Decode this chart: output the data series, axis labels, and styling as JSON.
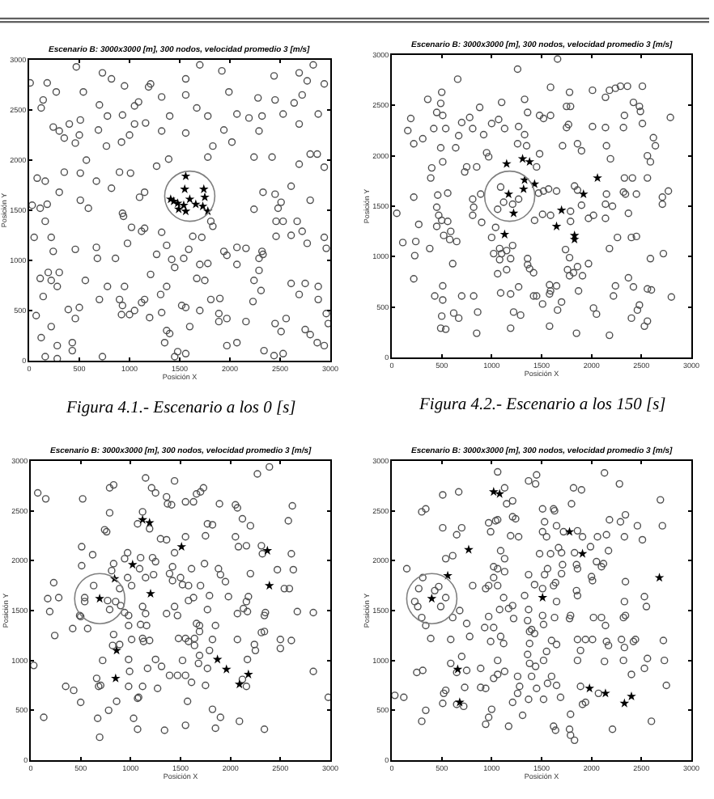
{
  "chart_data": [
    {
      "type": "scatter",
      "title": "Escenario B: 3000x3000 [m], 300 nodos, velocidad promedio 3 [m/s]",
      "xlabel": "Posición X",
      "ylabel": "Posición Y",
      "annotations": [
        "Figura 4.1.- Escenario a los 0 [s]"
      ],
      "xlim": [
        0,
        3000
      ],
      "ylim": [
        0,
        3000
      ],
      "xticks": [
        0,
        500,
        1000,
        1500,
        2000,
        2500,
        3000
      ],
      "yticks": [
        0,
        500,
        1000,
        1500,
        2000,
        2500,
        3000
      ],
      "series": [
        {
          "color": "#505050",
          "marker": "circle",
          "x": [
            10,
            180,
            470,
            730,
            820,
            950,
            540,
            700,
            270,
            140,
            120,
            240,
            300,
            350,
            460,
            500,
            400,
            510,
            690,
            780,
            930,
            1050,
            1090,
            1190,
            1210,
            1320,
            1400,
            1320,
            1160,
            1050,
            1000,
            920,
            770,
            570,
            350,
            80,
            160,
            300,
            510,
            670,
            820,
            900,
            1010,
            1150,
            1270,
            1390,
            1560,
            1560,
            1700,
            1670,
            1780,
            1830,
            1780,
            1560,
            1920,
            1990,
            2070,
            1940,
            2020,
            2190,
            2280,
            2290,
            2240,
            2420,
            2320,
            2440,
            2450,
            2530,
            2640,
            2690,
            2770,
            2830,
            2940,
            2720,
            2880,
            2690,
            2800,
            2870,
            2940,
            2690,
            30,
            110,
            180,
            160,
            220,
            50,
            240,
            460,
            510,
            590,
            940,
            930,
            1100,
            1020,
            1120,
            1150,
            980,
            860,
            670,
            680,
            1320,
            1370,
            1270,
            1420,
            1450,
            1540,
            1590,
            1630,
            1720,
            1810,
            1830,
            1700,
            1780,
            1940,
            2070,
            2160,
            1970,
            2070,
            2290,
            2320,
            2330,
            2290,
            2240,
            2310,
            2240,
            2330,
            2450,
            2480,
            2510,
            2460,
            2530,
            2460,
            2610,
            2670,
            2720,
            2610,
            2800,
            2940,
            2960,
            2770,
            110,
            190,
            220,
            300,
            280,
            140,
            70,
            220,
            120,
            160,
            280,
            280,
            430,
            430,
            390,
            460,
            500,
            560,
            700,
            730,
            780,
            900,
            930,
            920,
            1000,
            950,
            1050,
            1120,
            1150,
            1210,
            1310,
            1370,
            1320,
            1200,
            1370,
            1400,
            1350,
            1450,
            1480,
            1560,
            1600,
            1520,
            1560,
            1700,
            1670,
            1750,
            1810,
            1900,
            1890,
            1890,
            1970,
            1970,
            2070,
            2160,
            2230,
            2340,
            2440,
            2530,
            2450,
            2510,
            2560,
            2690,
            2750,
            2610,
            2750,
            2800,
            2870,
            2880,
            2960,
            2980,
            2940,
            2880
          ],
          "values": [
            2770,
            2770,
            2930,
            2870,
            2810,
            2740,
            2680,
            2550,
            2680,
            2600,
            2520,
            2330,
            2290,
            2220,
            2170,
            2250,
            2360,
            2400,
            2300,
            2440,
            2450,
            2540,
            2580,
            2730,
            2760,
            2630,
            2440,
            2290,
            2370,
            2360,
            2250,
            2180,
            2140,
            2000,
            1880,
            1820,
            1790,
            1680,
            1870,
            1790,
            1720,
            1880,
            1870,
            1680,
            1940,
            2010,
            2810,
            2650,
            2950,
            2520,
            2440,
            2140,
            2030,
            2270,
            2890,
            2680,
            2460,
            2300,
            2180,
            2420,
            2620,
            2290,
            2030,
            2030,
            2440,
            2840,
            2600,
            2460,
            2570,
            2870,
            2790,
            2950,
            2760,
            2650,
            2460,
            2360,
            2060,
            2060,
            1930,
            1960,
            1550,
            1520,
            1560,
            1390,
            1230,
            1230,
            1090,
            1110,
            1600,
            1520,
            1440,
            1470,
            1630,
            1330,
            1290,
            1320,
            1170,
            1020,
            1130,
            1020,
            1280,
            1150,
            1060,
            1010,
            930,
            1020,
            1110,
            1240,
            1230,
            1390,
            1340,
            960,
            970,
            1090,
            1130,
            1120,
            1050,
            960,
            1020,
            1090,
            1060,
            900,
            800,
            700,
            1510,
            1680,
            1660,
            1520,
            1580,
            1390,
            1390,
            1240,
            1250,
            1390,
            1290,
            1740,
            1600,
            1230,
            1120,
            1170,
            820,
            880,
            800,
            880,
            740,
            640,
            450,
            340,
            230,
            40,
            150,
            20,
            180,
            100,
            510,
            420,
            530,
            800,
            610,
            40,
            740,
            610,
            550,
            460,
            460,
            740,
            500,
            580,
            610,
            860,
            660,
            740,
            480,
            430,
            300,
            270,
            180,
            40,
            90,
            70,
            340,
            550,
            530,
            500,
            820,
            800,
            610,
            620,
            470,
            390,
            420,
            150,
            180,
            390,
            590,
            100,
            50,
            70,
            370,
            290,
            420,
            660,
            770,
            770,
            310,
            260,
            180,
            610,
            470,
            370,
            150,
            740
          ]
        },
        {
          "color": "#000000",
          "marker": "star",
          "x": [
            1560,
            1550,
            1740,
            1410,
            1440,
            1480,
            1600,
            1540,
            1560,
            1660,
            1730,
            1780,
            1750,
            1490
          ],
          "values": [
            1840,
            1710,
            1710,
            1610,
            1590,
            1570,
            1610,
            1550,
            1490,
            1560,
            1540,
            1490,
            1630,
            1510
          ]
        }
      ]
    },
    {
      "type": "scatter",
      "title": "Escenario B: 3000x3000 [m], 300 nodos, velocidad promedio 3 [m/s]",
      "xlabel": "Posición X",
      "ylabel": "Posición Y",
      "annotations": [
        "Figura 4.2.- Escenario a los 150 [s]"
      ],
      "xlim": [
        0,
        3000
      ],
      "ylim": [
        0,
        3000
      ],
      "xticks": [
        0,
        500,
        1000,
        1500,
        2000,
        2500,
        3000
      ],
      "yticks": [
        0,
        500,
        1000,
        1500,
        2000,
        2500,
        3000
      ],
      "series": [
        {
          "color": "#505050",
          "marker": "circle",
          "x": [
            50,
            160,
            190,
            220,
            310,
            360,
            220,
            270,
            110,
            240,
            230,
            220,
            380,
            450,
            500,
            490,
            510,
            540,
            420,
            490,
            510,
            400,
            390,
            460,
            560,
            450,
            470,
            500,
            450,
            560,
            520,
            580,
            590,
            650,
            610,
            430,
            510,
            620,
            670,
            500,
            490,
            540,
            510,
            700,
            820,
            860,
            850,
            640,
            670,
            700,
            780,
            880,
            810,
            920,
            660,
            750,
            730,
            850,
            950,
            970,
            890,
            810,
            820,
            810,
            900,
            1040,
            1000,
            1080,
            1020,
            1100,
            1080,
            1150,
            1210,
            1190,
            1150,
            1060,
            1090,
            1190,
            1270,
            1220,
            1290,
            1190,
            1260,
            1660,
            1100,
            1070,
            1000,
            1130,
            1270,
            1330,
            1360,
            1330,
            1260,
            1350,
            1480,
            1520,
            1590,
            1590,
            1480,
            1450,
            1470,
            1520,
            1570,
            1650,
            1590,
            1510,
            1430,
            1360,
            1360,
            1380,
            1420,
            1420,
            1450,
            1510,
            1580,
            1580,
            1590,
            1650,
            1660,
            1700,
            1580,
            1750,
            1770,
            1750,
            1790,
            1780,
            1710,
            1860,
            1900,
            1860,
            1830,
            1900,
            1790,
            1790,
            1740,
            1780,
            1760,
            1780,
            1820,
            1860,
            1910,
            1970,
            1870,
            1850,
            2020,
            2050,
            2010,
            2010,
            2140,
            2180,
            2140,
            2150,
            2190,
            2240,
            2290,
            2360,
            2510,
            2420,
            2480,
            2490,
            2330,
            2320,
            2510,
            2620,
            2640,
            2560,
            2590,
            2560,
            2410,
            2330,
            2320,
            2450,
            2340,
            2370,
            2210,
            2150,
            2140,
            2140,
            1970,
            2020,
            2180,
            2260,
            2400,
            2450,
            2590,
            2710,
            2770,
            2710,
            2790,
            2720,
            2370,
            2240,
            2220,
            2420,
            2480,
            2460,
            2400,
            2560,
            2600,
            2530,
            2560,
            2800,
            2180,
            1090,
            1120,
            1210,
            1270,
            1060
          ],
          "values": [
            1430,
            2250,
            2370,
            2120,
            2170,
            2560,
            1590,
            1320,
            1140,
            1150,
            1010,
            780,
            1080,
            2430,
            2630,
            2520,
            2400,
            2270,
            2270,
            2080,
            1940,
            1880,
            1780,
            1610,
            1630,
            1490,
            1410,
            1360,
            1300,
            1350,
            1210,
            1170,
            1250,
            1150,
            930,
            610,
            570,
            440,
            390,
            410,
            290,
            280,
            710,
            610,
            610,
            450,
            240,
            2080,
            2200,
            2330,
            2380,
            2480,
            2270,
            2210,
            2760,
            1890,
            1840,
            1890,
            2030,
            1990,
            1620,
            1570,
            1490,
            1410,
            1340,
            1290,
            1190,
            1080,
            1030,
            1030,
            970,
            1060,
            1110,
            980,
            870,
            830,
            640,
            630,
            700,
            450,
            420,
            290,
            2860,
            2960,
            2530,
            2360,
            2320,
            2270,
            2290,
            2560,
            2430,
            2210,
            2120,
            2100,
            2400,
            2370,
            2680,
            2400,
            2020,
            1890,
            1630,
            1650,
            1670,
            1650,
            1410,
            1420,
            1360,
            920,
            980,
            880,
            840,
            610,
            610,
            530,
            720,
            630,
            660,
            710,
            470,
            550,
            310,
            2490,
            2310,
            2280,
            2490,
            2630,
            2100,
            2120,
            2050,
            1660,
            1700,
            1510,
            1450,
            1350,
            1070,
            990,
            870,
            810,
            840,
            900,
            810,
            930,
            660,
            240,
            490,
            430,
            2290,
            2650,
            2580,
            2650,
            2280,
            2100,
            1970,
            2670,
            2690,
            2690,
            2690,
            2530,
            2490,
            2440,
            2400,
            2280,
            2320,
            2180,
            2100,
            2000,
            1940,
            1780,
            1780,
            1780,
            1640,
            1620,
            1620,
            1430,
            1500,
            1620,
            1520,
            1380,
            1380,
            1410,
            1080,
            1190,
            1190,
            1200,
            980,
            1590,
            1650,
            1520,
            2380,
            1030,
            790,
            710,
            610,
            700,
            520,
            470,
            390,
            680,
            670,
            310,
            360,
            600,
            220,
            1690,
            1540,
            1520,
            1570,
            1470
          ]
        },
        {
          "color": "#000000",
          "marker": "star",
          "x": [
            1150,
            1310,
            1380,
            1330,
            1430,
            1320,
            1170,
            1220,
            1130,
            1700,
            1650,
            1830,
            1830,
            1920,
            2060
          ],
          "values": [
            1920,
            1970,
            1940,
            1760,
            1720,
            1670,
            1620,
            1430,
            1220,
            1460,
            1300,
            1210,
            1170,
            1620,
            1780
          ]
        }
      ]
    },
    {
      "type": "scatter",
      "title": "Escenario B: 3000x3000 [m], 300 nodos, velocidad promedio 3 [m/s]",
      "xlabel": "Posición X",
      "ylabel": "Posición Y",
      "xlim": [
        0,
        3000
      ],
      "ylim": [
        0,
        3000
      ],
      "xticks": [
        0,
        500,
        1000,
        1500,
        2000,
        2500,
        3000
      ],
      "yticks": [
        0,
        500,
        1000,
        1500,
        2000,
        2500,
        3000
      ],
      "series": [
        {
          "color": "#505050",
          "marker": "circle",
          "x": [
            70,
            150,
            520,
            30,
            130,
            230,
            170,
            190,
            280,
            240,
            350,
            430,
            500,
            420,
            490,
            500,
            540,
            540,
            570,
            510,
            510,
            620,
            740,
            760,
            790,
            790,
            830,
            830,
            810,
            850,
            790,
            890,
            900,
            830,
            890,
            820,
            720,
            660,
            700,
            680,
            670,
            780,
            860,
            690,
            970,
            940,
            970,
            1010,
            980,
            980,
            940,
            1010,
            980,
            990,
            980,
            1070,
            1080,
            1120,
            1030,
            1070,
            1070,
            1150,
            1210,
            1250,
            1120,
            1190,
            1100,
            1220,
            1090,
            1150,
            1230,
            1250,
            1120,
            1150,
            1100,
            1160,
            1120,
            1130,
            1190,
            1250,
            1170,
            1310,
            1270,
            1340,
            1300,
            1360,
            1360,
            1370,
            1410,
            1440,
            1550,
            1660,
            1730,
            1700,
            1630,
            1550,
            1440,
            1420,
            1390,
            1420,
            1500,
            1610,
            1520,
            1580,
            1440,
            1360,
            1470,
            1580,
            1630,
            1480,
            1550,
            1580,
            1640,
            1660,
            1690,
            1690,
            1640,
            1690,
            1680,
            1520,
            1470,
            1390,
            1550,
            1610,
            1570,
            1550,
            1740,
            1700,
            1750,
            1770,
            1820,
            1890,
            1790,
            1770,
            1850,
            1820,
            1790,
            1770,
            1750,
            1820,
            1900,
            1850,
            1880,
            1900,
            1950,
            1980,
            2050,
            2070,
            2120,
            2200,
            2050,
            2080,
            2160,
            2200,
            2310,
            2320,
            2180,
            2070,
            2130,
            2160,
            2170,
            2340,
            2350,
            2310,
            2340,
            2070,
            2240,
            2250,
            2170,
            2120,
            2160,
            2270,
            2390,
            2580,
            2620,
            2610,
            2630,
            2590,
            2670,
            2470,
            2540,
            2500,
            2610,
            2500,
            2830,
            2830,
            2980,
            2340,
            2090,
            630,
            770
          ],
          "values": [
            2680,
            2620,
            2620,
            950,
            430,
            1780,
            1620,
            1490,
            1630,
            1250,
            740,
            700,
            580,
            1320,
            1450,
            1440,
            1590,
            1630,
            1320,
            2140,
            1950,
            2060,
            2310,
            2290,
            2480,
            2730,
            2760,
            1970,
            1900,
            1590,
            1510,
            1720,
            1550,
            1260,
            1160,
            1150,
            1000,
            820,
            750,
            740,
            420,
            500,
            590,
            230,
            2080,
            2020,
            1830,
            1750,
            1450,
            1350,
            1480,
            1210,
            1010,
            890,
            740,
            620,
            630,
            740,
            420,
            310,
            2370,
            2830,
            2730,
            2680,
            2490,
            2320,
            2030,
            2030,
            1920,
            1830,
            1860,
            1990,
            1540,
            1470,
            1360,
            1350,
            1220,
            1190,
            1200,
            1010,
            920,
            940,
            720,
            300,
            2220,
            2210,
            2640,
            2570,
            2560,
            2800,
            2590,
            2670,
            2730,
            2690,
            2590,
            2240,
            2080,
            1940,
            1870,
            1800,
            1830,
            1920,
            1760,
            1750,
            1540,
            1470,
            1450,
            1600,
            1630,
            1220,
            1220,
            1190,
            1220,
            1370,
            1350,
            1290,
            1150,
            1050,
            970,
            1000,
            850,
            850,
            850,
            780,
            590,
            350,
            1970,
            1750,
            2250,
            2370,
            2360,
            2570,
            1650,
            1510,
            1350,
            1210,
            1100,
            920,
            750,
            510,
            430,
            320,
            1920,
            1860,
            1790,
            1640,
            2560,
            2530,
            2420,
            2350,
            2240,
            2140,
            2150,
            1870,
            2150,
            2070,
            1640,
            1470,
            1520,
            1590,
            1490,
            1450,
            1480,
            1280,
            1290,
            1210,
            1160,
            1100,
            1010,
            810,
            740,
            2870,
            2940,
            2400,
            2550,
            2070,
            1910,
            1720,
            1490,
            1910,
            1720,
            1210,
            1200,
            1120,
            1480,
            890,
            630,
            310,
            390,
            1750,
            1600
          ]
        },
        {
          "color": "#000000",
          "marker": "star",
          "x": [
            690,
            840,
            1020,
            1120,
            1190,
            1200,
            1510,
            860,
            850,
            1870,
            1960,
            2090,
            2180,
            2370,
            2390
          ],
          "values": [
            1620,
            1820,
            1960,
            2410,
            2380,
            1670,
            2140,
            1100,
            820,
            1010,
            910,
            760,
            860,
            2100,
            1750
          ]
        }
      ]
    },
    {
      "type": "scatter",
      "title": "Escenario B: 3000x3000 [m], 300 nodos, velocidad promedio 3 [m/s]",
      "xlabel": "Posición X",
      "ylabel": "Posición Y",
      "xlim": [
        0,
        3000
      ],
      "ylim": [
        0,
        3000
      ],
      "xticks": [
        0,
        500,
        1000,
        1500,
        2000,
        2500,
        3000
      ],
      "yticks": [
        0,
        500,
        1000,
        1500,
        2000,
        2500,
        3000
      ],
      "series": [
        {
          "color": "#505050",
          "marker": "circle",
          "x": [
            30,
            120,
            150,
            270,
            230,
            260,
            300,
            340,
            310,
            430,
            470,
            540,
            490,
            390,
            250,
            310,
            300,
            340,
            510,
            510,
            670,
            650,
            700,
            540,
            610,
            610,
            590,
            590,
            650,
            700,
            750,
            730,
            720,
            650,
            510,
            340,
            520,
            540,
            300,
            680,
            750,
            780,
            810,
            890,
            940,
            890,
            990,
            1020,
            970,
            930,
            970,
            940,
            1020,
            1020,
            990,
            1040,
            1060,
            970,
            1060,
            1130,
            1150,
            1210,
            1210,
            1240,
            1270,
            1190,
            1090,
            1130,
            1060,
            1130,
            1060,
            1120,
            1080,
            1170,
            1210,
            1220,
            1090,
            1120,
            1060,
            1130,
            1060,
            1020,
            1000,
            970,
            940,
            1210,
            1260,
            1280,
            1260,
            1310,
            1170,
            1370,
            1330,
            1430,
            1370,
            1360,
            1400,
            1380,
            1430,
            1380,
            1360,
            1380,
            1440,
            1400,
            1450,
            1370,
            1520,
            1440,
            1450,
            1370,
            1510,
            1530,
            1510,
            1550,
            1590,
            1480,
            1620,
            1630,
            1650,
            1670,
            1700,
            1710,
            1720,
            1530,
            1560,
            1700,
            1640,
            1620,
            1510,
            1510,
            1520,
            1650,
            1630,
            1600,
            1650,
            1550,
            1520,
            1600,
            1650,
            1560,
            1690,
            1620,
            1640,
            1790,
            1780,
            1790,
            1820,
            1900,
            1800,
            1860,
            1830,
            1850,
            1860,
            1910,
            1990,
            2060,
            2050,
            2000,
            2010,
            1850,
            1860,
            1790,
            1780,
            1860,
            1940,
            1890,
            1860,
            1890,
            1940,
            1910,
            2130,
            2180,
            2290,
            2340,
            2280,
            2150,
            2170,
            2120,
            2100,
            2330,
            2460,
            2510,
            2340,
            2330,
            2340,
            2320,
            2530,
            2550,
            2100,
            2140,
            2020,
            2010,
            2150,
            2170,
            2130,
            2300,
            2440,
            2420,
            2330,
            2320,
            2400,
            2530,
            2560,
            2690,
            2710,
            2720,
            2730,
            2750,
            2600,
            2210,
            2070,
            1830
          ],
          "values": [
            650,
            630,
            1920,
            1720,
            1590,
            1540,
            1430,
            1350,
            1830,
            1700,
            1740,
            1630,
            1540,
            1220,
            880,
            900,
            2490,
            2520,
            2330,
            2660,
            2690,
            2260,
            2330,
            2020,
            2050,
            1430,
            1210,
            970,
            880,
            1040,
            900,
            730,
            540,
            560,
            570,
            500,
            670,
            700,
            390,
            1500,
            1370,
            1240,
            1750,
            730,
            720,
            920,
            1190,
            1330,
            1440,
            1330,
            1750,
            1720,
            1830,
            1940,
            2290,
            2400,
            2410,
            2380,
            2890,
            2730,
            2570,
            2600,
            2440,
            2420,
            2240,
            2250,
            2100,
            2020,
            1920,
            1890,
            1750,
            1630,
            1510,
            1520,
            1550,
            1420,
            1240,
            1170,
            1000,
            890,
            860,
            820,
            510,
            430,
            360,
            580,
            670,
            740,
            840,
            450,
            340,
            1860,
            1650,
            1760,
            1510,
            1400,
            1310,
            1290,
            1270,
            1170,
            1060,
            970,
            940,
            840,
            720,
            610,
            610,
            2770,
            2860,
            2800,
            2520,
            2390,
            2290,
            2240,
            2070,
            2070,
            2520,
            2500,
            2350,
            2130,
            2080,
            1960,
            2290,
            1860,
            1920,
            1870,
            1780,
            1750,
            1720,
            1450,
            1360,
            1590,
            1430,
            1200,
            1160,
            1090,
            1000,
            840,
            750,
            770,
            630,
            340,
            300,
            460,
            310,
            250,
            2730,
            2710,
            2570,
            2300,
            2080,
            1960,
            1920,
            2240,
            2140,
            2240,
            1990,
            1840,
            1800,
            1700,
            1650,
            1450,
            1420,
            1210,
            1210,
            1100,
            1000,
            740,
            580,
            560,
            2880,
            2410,
            2390,
            2460,
            2770,
            2260,
            2100,
            1970,
            1940,
            2240,
            2350,
            2210,
            1790,
            1590,
            1450,
            1430,
            1640,
            1540,
            1430,
            1350,
            1430,
            1210,
            1190,
            1150,
            990,
            1210,
            1210,
            1190,
            1130,
            1000,
            860,
            920,
            1020,
            2610,
            2350,
            1200,
            1000,
            750,
            390,
            310,
            670,
            200
          ]
        },
        {
          "color": "#000000",
          "marker": "star",
          "x": [
            400,
            560,
            770,
            1020,
            1080,
            1510,
            1780,
            1910,
            2680,
            660,
            680,
            1980,
            2140,
            2330,
            2400
          ],
          "values": [
            1620,
            1850,
            2110,
            2690,
            2670,
            1630,
            2290,
            2070,
            1830,
            910,
            580,
            720,
            670,
            570,
            640
          ]
        }
      ]
    }
  ]
}
